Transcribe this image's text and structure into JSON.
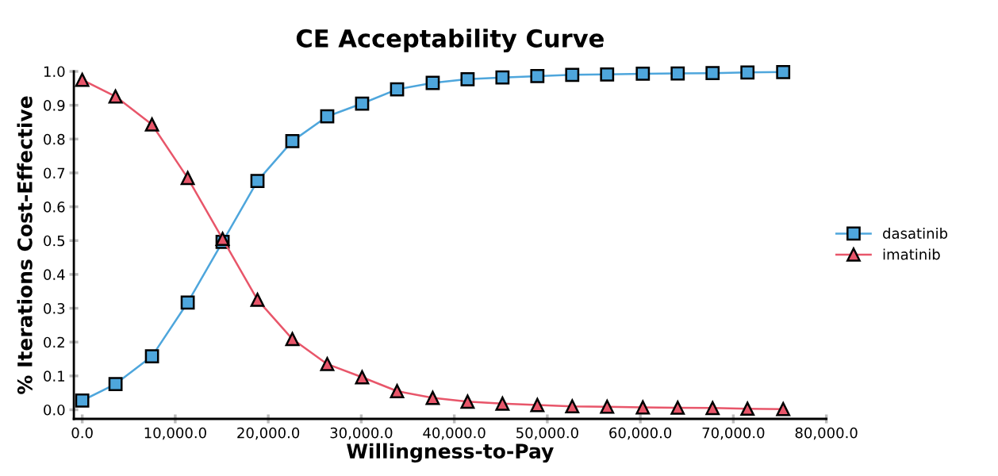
{
  "chart_data": {
    "type": "line",
    "title": "CE Acceptability Curve",
    "xlabel": "Willingness-to-Pay",
    "ylabel": "% Iterations Cost-Effective",
    "x": [
      0,
      3580,
      7500,
      11340,
      15090,
      18840,
      22590,
      26340,
      30090,
      33850,
      37680,
      41430,
      45180,
      48930,
      52680,
      56430,
      60270,
      64020,
      67770,
      71520,
      75360
    ],
    "series": [
      {
        "name": "dasatinib",
        "color": "#4ea6dc",
        "marker": "square",
        "values": [
          0.027,
          0.076,
          0.158,
          0.317,
          0.496,
          0.676,
          0.794,
          0.867,
          0.905,
          0.947,
          0.966,
          0.977,
          0.982,
          0.986,
          0.99,
          0.991,
          0.993,
          0.994,
          0.995,
          0.997,
          0.998
        ]
      },
      {
        "name": "imatinib",
        "color": "#e8566a",
        "marker": "triangle",
        "values": [
          0.975,
          0.926,
          0.843,
          0.685,
          0.505,
          0.325,
          0.209,
          0.135,
          0.096,
          0.055,
          0.035,
          0.024,
          0.018,
          0.014,
          0.01,
          0.009,
          0.007,
          0.006,
          0.005,
          0.003,
          0.002
        ]
      }
    ],
    "xlim": [
      -900,
      80000
    ],
    "xticks": [
      {
        "value": 0,
        "label": "0.0"
      },
      {
        "value": 10000,
        "label": "10,000.0"
      },
      {
        "value": 20000,
        "label": "20,000.0"
      },
      {
        "value": 30000,
        "label": "30,000.0"
      },
      {
        "value": 40000,
        "label": "40,000.0"
      },
      {
        "value": 50000,
        "label": "50,000.0"
      },
      {
        "value": 60000,
        "label": "60,000.0"
      },
      {
        "value": 70000,
        "label": "70,000.0"
      },
      {
        "value": 80000,
        "label": "80,000.0"
      }
    ],
    "ylim": [
      -0.027,
      1.0
    ],
    "yticks": [
      {
        "value": 0,
        "label": "0.0"
      },
      {
        "value": 0.1,
        "label": "0.1"
      },
      {
        "value": 0.2,
        "label": "0.2"
      },
      {
        "value": 0.3,
        "label": "0.3"
      },
      {
        "value": 0.4,
        "label": "0.4"
      },
      {
        "value": 0.5,
        "label": "0.5"
      },
      {
        "value": 0.6,
        "label": "0.6"
      },
      {
        "value": 0.7,
        "label": "0.7"
      },
      {
        "value": 0.8,
        "label": "0.8"
      },
      {
        "value": 0.9,
        "label": "0.9"
      },
      {
        "value": 1.0,
        "label": "1.0"
      }
    ],
    "grid": false,
    "legend": "right",
    "line_style": "solid"
  }
}
